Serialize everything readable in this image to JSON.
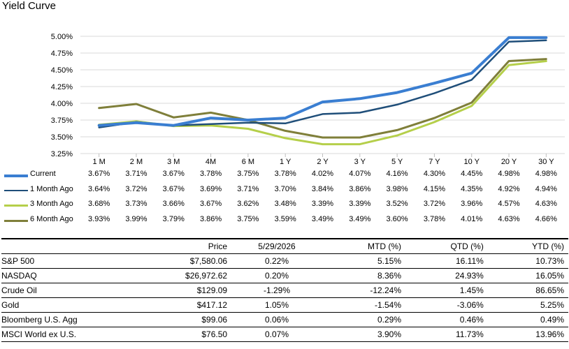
{
  "chart_data": {
    "type": "line",
    "title": "Yield Curve",
    "categories": [
      "1 M",
      "2 M",
      "3 M",
      "4M",
      "6 M",
      "1 Y",
      "2 Y",
      "3 Y",
      "5 Y",
      "7 Y",
      "10 Y",
      "20 Y",
      "30 Y"
    ],
    "ylim": [
      3.25,
      5.0
    ],
    "yticks": [
      "5.00%",
      "4.75%",
      "4.50%",
      "4.25%",
      "4.00%",
      "3.75%",
      "3.50%",
      "3.25%"
    ],
    "grid": true,
    "legend": "table-below",
    "series": [
      {
        "name": "Current",
        "color": "#3a7ed1",
        "width": 4,
        "values": [
          3.67,
          3.71,
          3.67,
          3.78,
          3.75,
          3.78,
          4.02,
          4.07,
          4.16,
          4.3,
          4.45,
          4.98,
          4.98
        ],
        "labels": [
          "3.67%",
          "3.71%",
          "3.67%",
          "3.78%",
          "3.75%",
          "3.78%",
          "4.02%",
          "4.07%",
          "4.16%",
          "4.30%",
          "4.45%",
          "4.98%",
          "4.98%"
        ]
      },
      {
        "name": "1 Month Ago",
        "color": "#1f4e79",
        "width": 2.5,
        "values": [
          3.64,
          3.72,
          3.67,
          3.69,
          3.71,
          3.7,
          3.84,
          3.86,
          3.98,
          4.15,
          4.35,
          4.92,
          4.94
        ],
        "labels": [
          "3.64%",
          "3.72%",
          "3.67%",
          "3.69%",
          "3.71%",
          "3.70%",
          "3.84%",
          "3.86%",
          "3.98%",
          "4.15%",
          "4.35%",
          "4.92%",
          "4.94%"
        ]
      },
      {
        "name": "3 Month Ago",
        "color": "#b5cf4a",
        "width": 3,
        "values": [
          3.68,
          3.73,
          3.66,
          3.67,
          3.62,
          3.48,
          3.39,
          3.39,
          3.52,
          3.72,
          3.96,
          4.57,
          4.63
        ],
        "labels": [
          "3.68%",
          "3.73%",
          "3.66%",
          "3.67%",
          "3.62%",
          "3.48%",
          "3.39%",
          "3.39%",
          "3.52%",
          "3.72%",
          "3.96%",
          "4.57%",
          "4.63%"
        ]
      },
      {
        "name": "6 Month Ago",
        "color": "#7f7f3a",
        "width": 3,
        "values": [
          3.93,
          3.99,
          3.79,
          3.86,
          3.75,
          3.59,
          3.49,
          3.49,
          3.6,
          3.78,
          4.01,
          4.63,
          4.66
        ],
        "labels": [
          "3.93%",
          "3.99%",
          "3.79%",
          "3.86%",
          "3.75%",
          "3.59%",
          "3.49%",
          "3.49%",
          "3.60%",
          "3.78%",
          "4.01%",
          "4.63%",
          "4.66%"
        ]
      }
    ]
  },
  "market_table": {
    "headers": [
      "",
      "Price",
      "5/29/2026",
      "MTD (%)",
      "QTD (%)",
      "YTD (%)"
    ],
    "rows": [
      [
        "S&P 500",
        "$7,580.06",
        "0.22%",
        "5.15%",
        "16.11%",
        "10.73%"
      ],
      [
        "NASDAQ",
        "$26,972.62",
        "0.20%",
        "8.36%",
        "24.93%",
        "16.05%"
      ],
      [
        "Crude Oil",
        "$129.09",
        "-1.29%",
        "-12.24%",
        "1.45%",
        "86.65%"
      ],
      [
        "Gold",
        "$417.12",
        "1.05%",
        "-1.54%",
        "-3.06%",
        "5.25%"
      ],
      [
        "Bloomberg U.S. Agg",
        "$99.06",
        "0.06%",
        "0.29%",
        "0.46%",
        "0.49%"
      ],
      [
        "MSCI World ex U.S.",
        "$76.50",
        "0.07%",
        "3.90%",
        "11.73%",
        "13.96%"
      ]
    ]
  }
}
